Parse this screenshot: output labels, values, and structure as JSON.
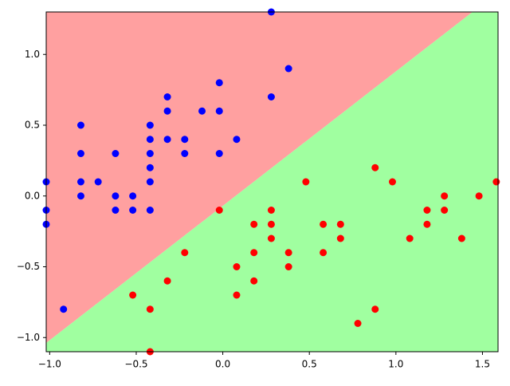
{
  "chart_data": {
    "type": "scatter",
    "series": [
      {
        "color": "#0000ff",
        "x": [
          -1.02,
          -1.02,
          -1.02,
          -0.92,
          -0.82,
          -0.82,
          -0.82,
          -0.82,
          -0.72,
          -0.62,
          -0.62,
          -0.62,
          -0.52,
          -0.52,
          -0.42,
          -0.42,
          -0.42,
          -0.42,
          -0.42,
          -0.42,
          -0.32,
          -0.32,
          -0.32,
          -0.22,
          -0.22,
          -0.12,
          -0.02,
          -0.02,
          -0.02,
          0.08,
          0.28,
          0.28,
          0.38
        ],
        "y": [
          0.1,
          -0.1,
          -0.2,
          -0.8,
          0.5,
          0.3,
          0.1,
          0.0,
          0.1,
          0.3,
          0.0,
          -0.1,
          0.0,
          -0.1,
          0.5,
          0.4,
          0.3,
          0.2,
          0.1,
          -0.1,
          0.7,
          0.6,
          0.4,
          0.4,
          0.3,
          0.6,
          0.8,
          0.6,
          0.3,
          0.4,
          1.3,
          0.7,
          0.9
        ]
      },
      {
        "color": "#ff0000",
        "x": [
          -0.02,
          -0.22,
          -0.32,
          -0.52,
          -0.42,
          -0.42,
          0.08,
          0.08,
          0.18,
          0.18,
          0.18,
          0.28,
          0.28,
          0.28,
          0.38,
          0.38,
          0.48,
          0.58,
          0.58,
          0.68,
          0.68,
          0.78,
          0.88,
          0.88,
          0.98,
          1.08,
          1.18,
          1.18,
          1.28,
          1.28,
          1.38,
          1.48,
          1.58
        ],
        "y": [
          -0.1,
          -0.4,
          -0.6,
          -0.7,
          -0.8,
          -1.1,
          -0.5,
          -0.7,
          -0.2,
          -0.4,
          -0.6,
          -0.1,
          -0.2,
          -0.3,
          -0.4,
          -0.5,
          0.1,
          -0.2,
          -0.4,
          -0.2,
          -0.3,
          -0.9,
          0.2,
          -0.8,
          0.1,
          -0.3,
          -0.1,
          -0.2,
          0.0,
          -0.1,
          -0.3,
          0.0,
          0.1
        ]
      }
    ],
    "xlim": [
      -1.02,
      1.59
    ],
    "ylim": [
      -1.1,
      1.3
    ],
    "xticks": [
      {
        "value": -1.0,
        "label": "−1.0"
      },
      {
        "value": -0.5,
        "label": "−0.5"
      },
      {
        "value": 0.0,
        "label": "0.0"
      },
      {
        "value": 0.5,
        "label": "0.5"
      },
      {
        "value": 1.0,
        "label": "1.0"
      },
      {
        "value": 1.5,
        "label": "1.5"
      }
    ],
    "yticks": [
      {
        "value": -1.0,
        "label": "−1.0"
      },
      {
        "value": -0.5,
        "label": "−0.5"
      },
      {
        "value": 0.0,
        "label": "0.0"
      },
      {
        "value": 0.5,
        "label": "0.5"
      },
      {
        "value": 1.0,
        "label": "1.0"
      }
    ]
  }
}
